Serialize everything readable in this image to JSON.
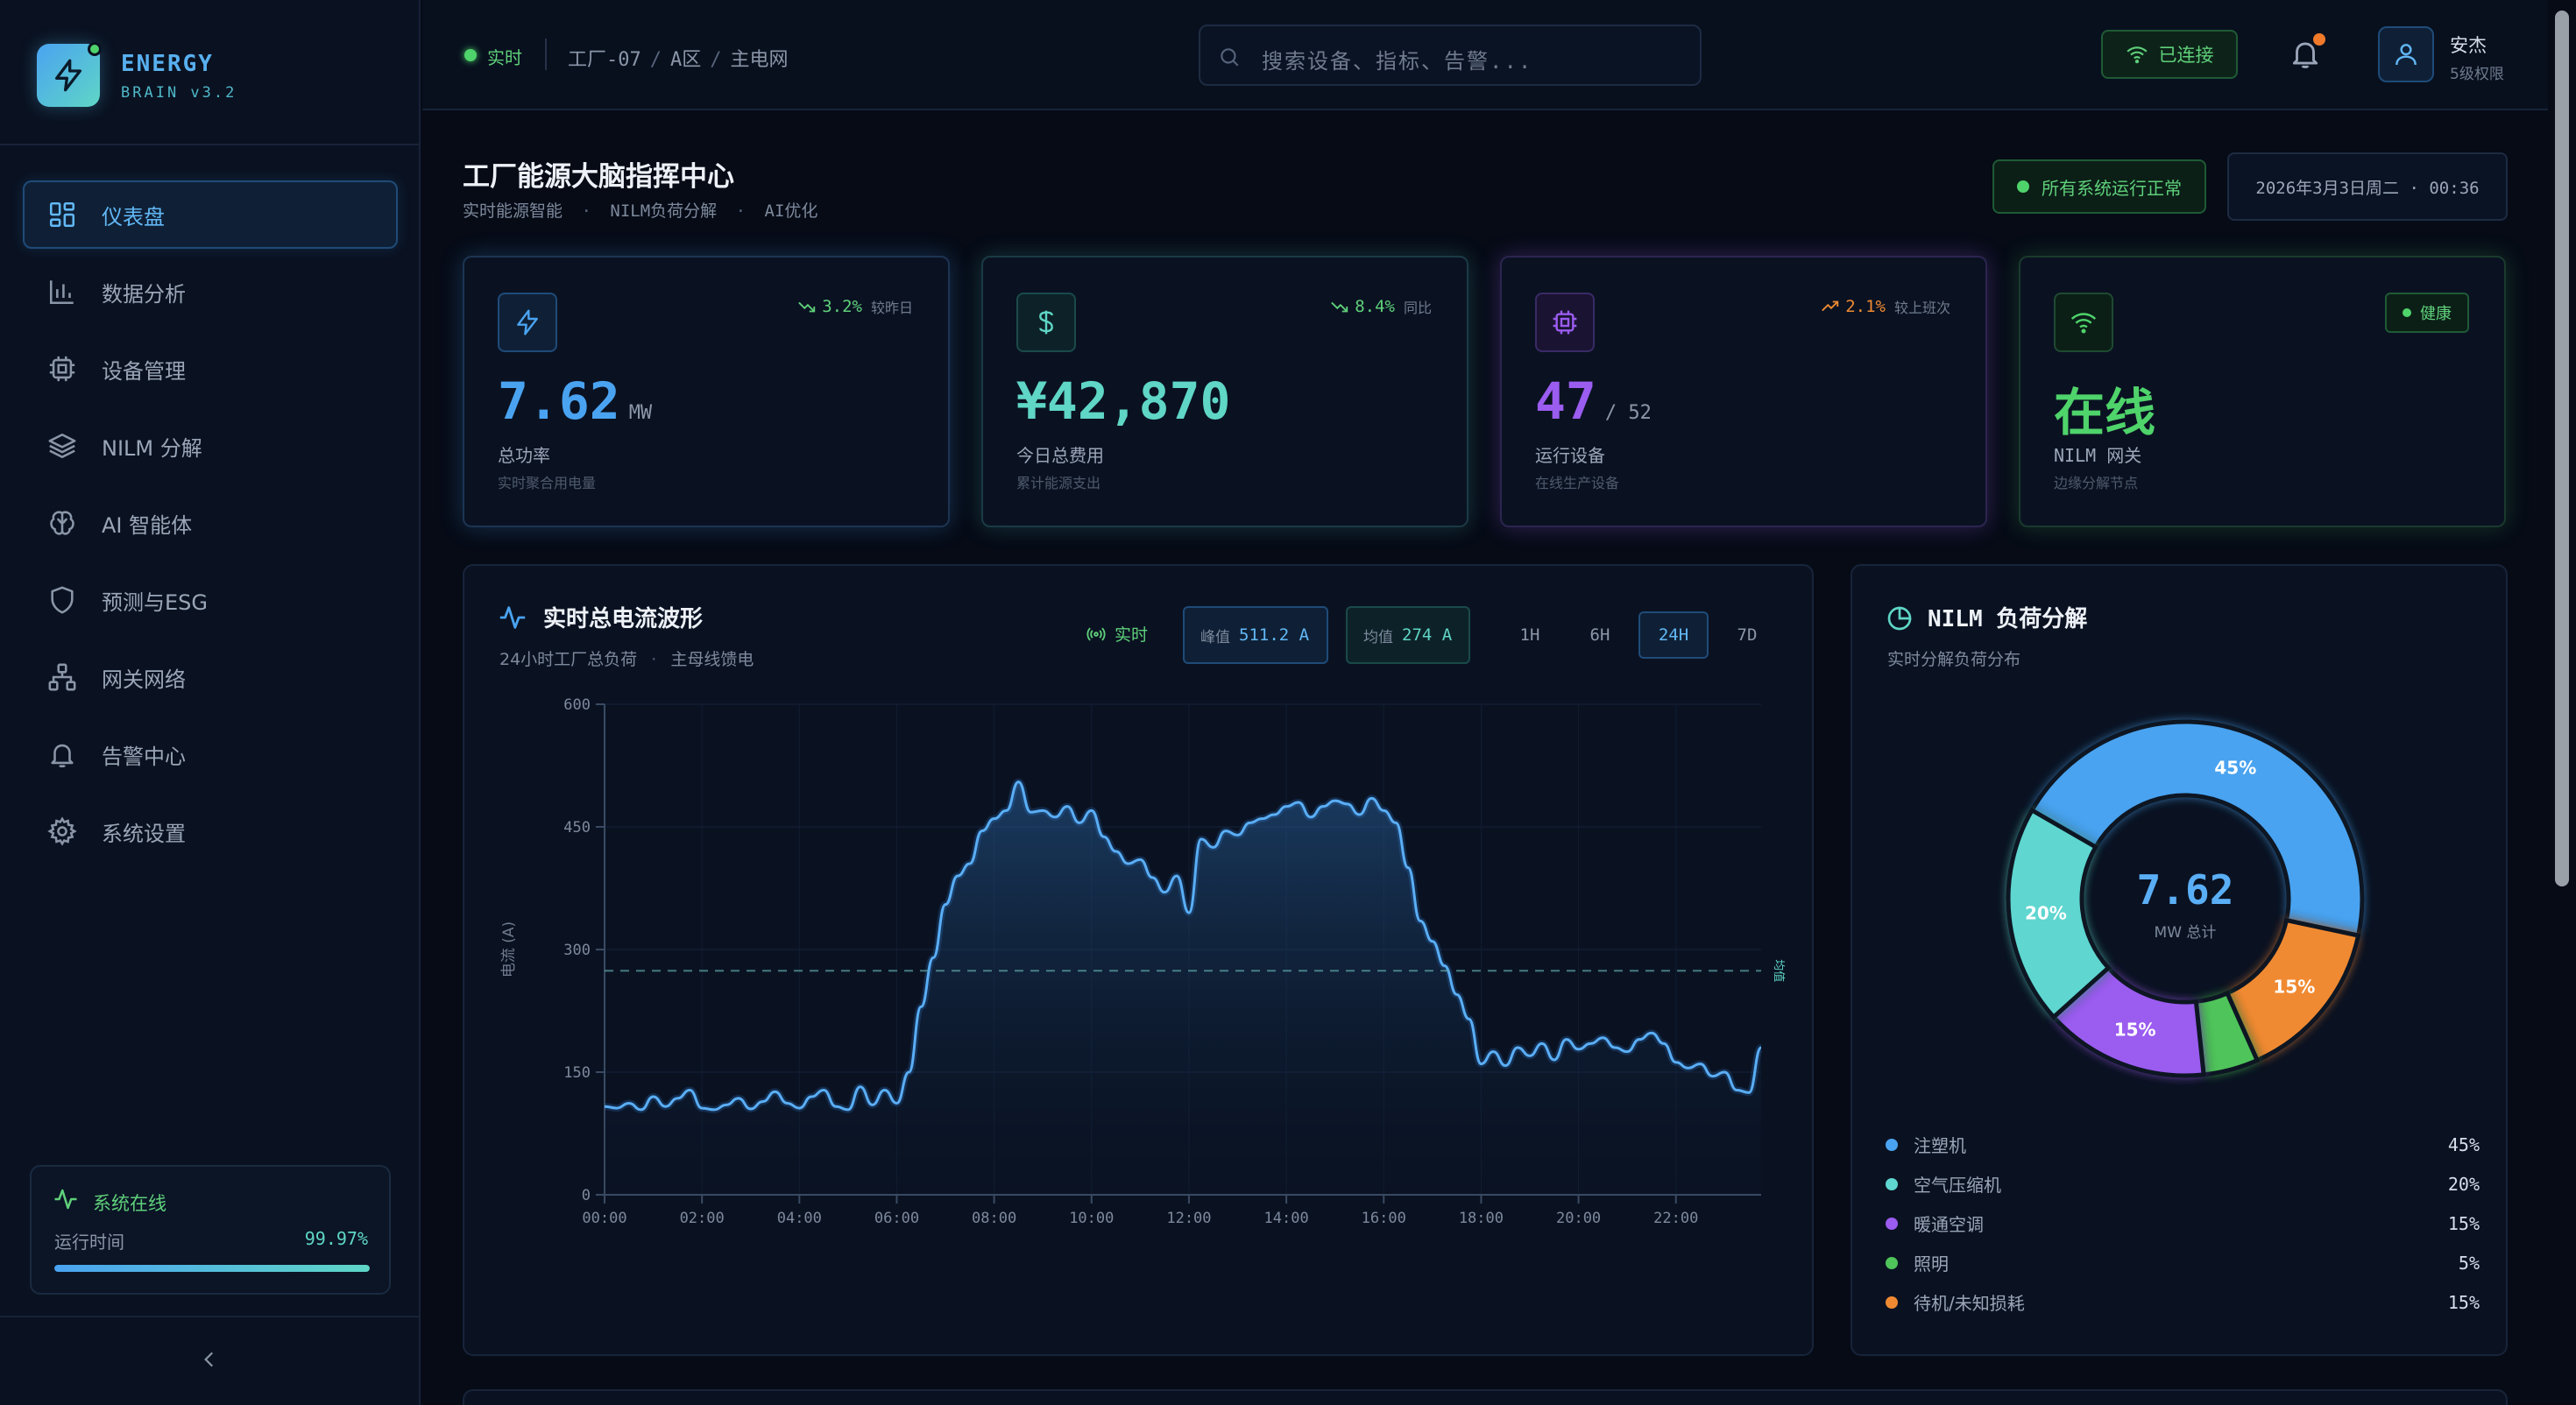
{
  "brand": {
    "name": "ENERGY",
    "version": "BRAIN v3.2"
  },
  "sidebar": {
    "items": [
      {
        "label": "仪表盘",
        "icon": "dashboard-icon",
        "active": true
      },
      {
        "label": "数据分析",
        "icon": "bar-chart-icon",
        "active": false
      },
      {
        "label": "设备管理",
        "icon": "chip-icon",
        "active": false
      },
      {
        "label": "NILM 分解",
        "icon": "layers-icon",
        "active": false
      },
      {
        "label": "AI 智能体",
        "icon": "brain-icon",
        "active": false
      },
      {
        "label": "预测与ESG",
        "icon": "shield-icon",
        "active": false
      },
      {
        "label": "网关网络",
        "icon": "network-icon",
        "active": false
      },
      {
        "label": "告警中心",
        "icon": "bell-icon",
        "active": false
      },
      {
        "label": "系统设置",
        "icon": "gear-icon",
        "active": false
      }
    ],
    "status": {
      "title": "系统在线",
      "uptime_label": "运行时间",
      "uptime_value": "99.97%",
      "uptime_fraction": 0.9997
    }
  },
  "topbar": {
    "live": "实时",
    "breadcrumb": [
      "工厂-07",
      "A区",
      "主电网"
    ],
    "search_placeholder": "搜索设备、指标、告警...",
    "connection": "已连接",
    "user": {
      "name": "安杰",
      "role": "5级权限"
    }
  },
  "header": {
    "title": "工厂能源大脑指挥中心",
    "subtitle": [
      "实时能源智能",
      "NILM负荷分解",
      "AI优化"
    ],
    "system_status": "所有系统运行正常",
    "datetime": "2026年3月3日周二 · 00:36"
  },
  "kpis": [
    {
      "value": "7.62",
      "unit": "MW",
      "label": "总功率",
      "desc": "实时聚合用电量",
      "trend": "3.2%",
      "trend_caption": "较昨日",
      "trend_dir": "down",
      "color": "#4aa3f0",
      "icon": "bolt-icon"
    },
    {
      "value": "¥42,870",
      "unit": "",
      "label": "今日总费用",
      "desc": "累计能源支出",
      "trend": "8.4%",
      "trend_caption": "同比",
      "trend_dir": "down",
      "color": "#5fd6c6",
      "icon": "dollar-icon"
    },
    {
      "value": "47",
      "unit": "/ 52",
      "label": "运行设备",
      "desc": "在线生产设备",
      "trend": "2.1%",
      "trend_caption": "较上班次",
      "trend_dir": "up",
      "color": "#9b5cf0",
      "icon": "cpu-icon"
    },
    {
      "value": "在线",
      "unit": "",
      "label": "NILM 网关",
      "desc": "边缘分解节点",
      "badge": "健康",
      "color": "#4fd36b",
      "icon": "wifi-icon"
    }
  ],
  "waveform": {
    "title": "实时总电流波形",
    "subtitle": [
      "24小时工厂总负荷",
      "主母线馈电"
    ],
    "live": "实时",
    "peak_label": "峰值",
    "peak_value": "511.2 A",
    "avg_label": "均值",
    "avg_value": "274 A",
    "ranges": [
      "1H",
      "6H",
      "24H",
      "7D"
    ],
    "active_range": "24H"
  },
  "chart_data": [
    {
      "type": "area",
      "ylabel": "电流 (A)",
      "ylim": [
        0,
        600
      ],
      "yticks": [
        0,
        150,
        300,
        450,
        600
      ],
      "xticks": [
        "00:00",
        "02:00",
        "04:00",
        "06:00",
        "08:00",
        "10:00",
        "12:00",
        "14:00",
        "16:00",
        "18:00",
        "20:00",
        "22:00"
      ],
      "xlim_hours": [
        0,
        23.75
      ],
      "reference_line": {
        "value": 274,
        "label": "均值"
      },
      "grid": true,
      "series": [
        {
          "x": [
            0,
            0.25,
            0.5,
            0.75,
            1,
            1.25,
            1.5,
            1.75,
            2,
            2.25,
            2.5,
            2.75,
            3,
            3.25,
            3.5,
            3.75,
            4,
            4.25,
            4.5,
            4.75,
            5,
            5.25,
            5.5,
            5.75,
            6,
            6.25,
            6.5,
            6.75,
            7,
            7.25,
            7.5,
            7.75,
            8,
            8.25,
            8.5,
            8.75,
            9,
            9.25,
            9.5,
            9.75,
            10,
            10.25,
            10.5,
            10.75,
            11,
            11.25,
            11.5,
            11.75,
            12,
            12.25,
            12.5,
            12.75,
            13,
            13.25,
            13.5,
            13.75,
            14,
            14.25,
            14.5,
            14.75,
            15,
            15.25,
            15.5,
            15.75,
            16,
            16.25,
            16.5,
            16.75,
            17,
            17.25,
            17.5,
            17.75,
            18,
            18.25,
            18.5,
            18.75,
            19,
            19.25,
            19.5,
            19.75,
            20,
            20.25,
            20.5,
            20.75,
            21,
            21.25,
            21.5,
            21.75,
            22,
            22.25,
            22.5,
            22.75,
            23,
            23.25,
            23.5,
            23.75
          ],
          "values": [
            108,
            106,
            112,
            104,
            120,
            108,
            118,
            128,
            106,
            104,
            110,
            118,
            105,
            114,
            126,
            112,
            106,
            120,
            128,
            108,
            104,
            132,
            110,
            128,
            112,
            150,
            230,
            290,
            355,
            390,
            405,
            445,
            460,
            470,
            505,
            468,
            470,
            462,
            475,
            455,
            470,
            438,
            420,
            405,
            410,
            388,
            370,
            390,
            345,
            435,
            425,
            445,
            440,
            455,
            460,
            465,
            475,
            480,
            462,
            475,
            482,
            478,
            465,
            485,
            470,
            455,
            400,
            335,
            310,
            280,
            245,
            215,
            160,
            175,
            158,
            180,
            170,
            185,
            165,
            190,
            178,
            185,
            192,
            180,
            175,
            190,
            198,
            185,
            162,
            155,
            160,
            145,
            150,
            128,
            125,
            180
          ]
        }
      ]
    },
    {
      "type": "pie",
      "title": "",
      "center_value": "7.62",
      "center_caption": "MW 总计",
      "categories": [
        "注塑机",
        "空气压缩机",
        "暖通空调",
        "照明",
        "待机/未知损耗"
      ],
      "values": [
        45,
        20,
        15,
        5,
        15
      ],
      "colors": [
        "#4aa3f0",
        "#5fd6d0",
        "#9b5cf0",
        "#4fc45a",
        "#f08a32"
      ],
      "slice_order": [
        "注塑机",
        "待机/未知损耗",
        "照明",
        "暖通空调",
        "空气压缩机"
      ]
    }
  ],
  "nilm": {
    "title": "NILM 负荷分解",
    "subtitle": "实时分解负荷分布",
    "center_value": "7.62",
    "center_caption": "MW 总计",
    "legend": [
      {
        "label": "注塑机",
        "value": "45%",
        "color": "#4aa3f0"
      },
      {
        "label": "空气压缩机",
        "value": "20%",
        "color": "#5fd6d0"
      },
      {
        "label": "暖通空调",
        "value": "15%",
        "color": "#9b5cf0"
      },
      {
        "label": "照明",
        "value": "5%",
        "color": "#4fc45a"
      },
      {
        "label": "待机/未知损耗",
        "value": "15%",
        "color": "#f08a32"
      }
    ]
  }
}
